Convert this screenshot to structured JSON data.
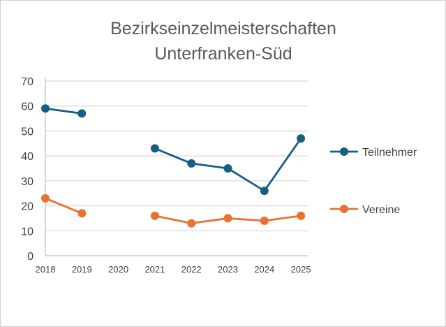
{
  "chart_data": {
    "type": "line",
    "title_lines": [
      "Bezirkseinzelmeisterschaften",
      "Unterfranken-Süd"
    ],
    "categories": [
      "2018",
      "2019",
      "2020",
      "2021",
      "2022",
      "2023",
      "2024",
      "2025"
    ],
    "ylim": [
      0,
      70
    ],
    "yticks": [
      0,
      10,
      20,
      30,
      40,
      50,
      60,
      70
    ],
    "grid": true,
    "legend_position": "right",
    "series": [
      {
        "name": "Teilnehmer",
        "color": "#156082",
        "values": [
          59,
          57,
          null,
          43,
          37,
          35,
          26,
          47
        ]
      },
      {
        "name": "Vereine",
        "color": "#E97132",
        "values": [
          23,
          17,
          null,
          16,
          13,
          15,
          14,
          16
        ]
      }
    ]
  }
}
